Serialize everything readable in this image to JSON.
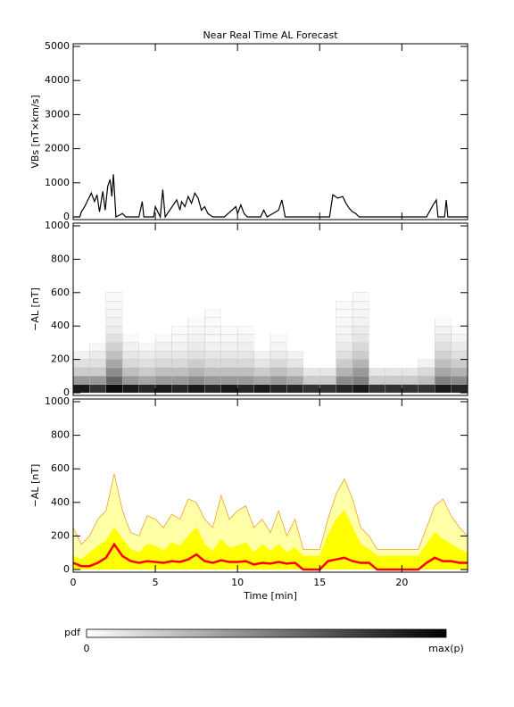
{
  "chart_data": [
    {
      "type": "line",
      "title": "Near Real Time AL Forecast",
      "ylabel": "VBs [nT×km/s]",
      "xlim": [
        0,
        24
      ],
      "ylim": [
        0,
        5000
      ],
      "yticks": [
        0,
        1000,
        2000,
        3000,
        4000,
        5000
      ],
      "x": [
        0,
        0.4,
        0.5,
        0.7,
        0.9,
        1.1,
        1.3,
        1.45,
        1.6,
        1.8,
        1.95,
        2.1,
        2.25,
        2.35,
        2.45,
        2.6,
        3.0,
        3.2,
        4.0,
        4.2,
        4.3,
        4.9,
        5.0,
        5.3,
        5.45,
        5.6,
        6.3,
        6.5,
        6.6,
        6.8,
        7.0,
        7.2,
        7.4,
        7.6,
        7.8,
        8.0,
        8.2,
        8.5,
        9.2,
        9.9,
        10.0,
        10.2,
        10.4,
        10.6,
        11.4,
        11.6,
        11.8,
        12.5,
        12.7,
        12.9,
        15.6,
        15.8,
        16.1,
        16.4,
        16.6,
        16.8,
        17.0,
        17.2,
        17.4,
        21.5,
        21.9,
        22.1,
        22.2,
        22.6,
        22.7,
        22.8,
        24
      ],
      "values": [
        0,
        0,
        150,
        300,
        500,
        700,
        450,
        650,
        150,
        750,
        200,
        900,
        1100,
        600,
        1250,
        0,
        100,
        0,
        0,
        450,
        0,
        0,
        300,
        0,
        800,
        0,
        500,
        200,
        450,
        300,
        600,
        400,
        700,
        550,
        200,
        300,
        100,
        0,
        0,
        300,
        100,
        350,
        100,
        0,
        0,
        200,
        0,
        200,
        500,
        0,
        0,
        650,
        550,
        600,
        400,
        250,
        150,
        100,
        0,
        0,
        350,
        500,
        0,
        0,
        500,
        0,
        0
      ],
      "color": "#000000"
    },
    {
      "type": "heatmap",
      "ylabel": "−AL [nT]",
      "xlim": [
        0,
        24
      ],
      "ylim": [
        0,
        1000
      ],
      "yticks": [
        0,
        200,
        400,
        600,
        800,
        1000
      ],
      "x_bins": [
        0,
        1,
        2,
        3,
        4,
        5,
        6,
        7,
        8,
        9,
        10,
        11,
        12,
        13,
        14,
        15,
        16,
        17,
        18,
        19,
        20,
        21,
        22,
        23,
        24
      ],
      "y_bins": [
        0,
        50,
        100,
        150,
        200,
        250,
        300,
        350,
        400,
        450,
        500,
        550,
        600
      ],
      "z": [
        [
          0.9,
          0.8,
          0.95,
          0.9,
          0.85,
          0.9,
          0.85,
          0.9,
          0.85,
          0.9,
          0.85,
          0.9,
          0.85,
          0.85,
          0.8,
          0.8,
          0.85,
          0.9,
          0.8,
          0.8,
          0.8,
          0.8,
          0.9,
          0.85
        ],
        [
          0.4,
          0.4,
          0.6,
          0.4,
          0.35,
          0.4,
          0.4,
          0.45,
          0.4,
          0.4,
          0.4,
          0.35,
          0.4,
          0.35,
          0.2,
          0.2,
          0.45,
          0.5,
          0.2,
          0.2,
          0.2,
          0.25,
          0.5,
          0.45
        ],
        [
          0.2,
          0.2,
          0.45,
          0.25,
          0.2,
          0.25,
          0.25,
          0.3,
          0.25,
          0.25,
          0.25,
          0.2,
          0.25,
          0.2,
          0.1,
          0.1,
          0.3,
          0.4,
          0.1,
          0.1,
          0.1,
          0.15,
          0.35,
          0.3
        ],
        [
          0.12,
          0.12,
          0.35,
          0.15,
          0.12,
          0.15,
          0.15,
          0.2,
          0.15,
          0.15,
          0.15,
          0.1,
          0.15,
          0.1,
          0,
          0,
          0.2,
          0.3,
          0,
          0,
          0,
          0.05,
          0.25,
          0.2
        ],
        [
          0.05,
          0.08,
          0.25,
          0.1,
          0.08,
          0.1,
          0.1,
          0.12,
          0.1,
          0.1,
          0.1,
          0.05,
          0.08,
          0.05,
          0,
          0,
          0.12,
          0.2,
          0,
          0,
          0,
          0,
          0.18,
          0.12
        ],
        [
          0,
          0.03,
          0.18,
          0.05,
          0.03,
          0.05,
          0.05,
          0.08,
          0.05,
          0.05,
          0.06,
          0,
          0.04,
          0,
          0,
          0,
          0.08,
          0.15,
          0,
          0,
          0,
          0,
          0.12,
          0.08
        ],
        [
          0,
          0,
          0.12,
          0.02,
          0,
          0.02,
          0.03,
          0.05,
          0.03,
          0.03,
          0.04,
          0,
          0.02,
          0,
          0,
          0,
          0.05,
          0.1,
          0,
          0,
          0,
          0,
          0.08,
          0.04
        ],
        [
          0,
          0,
          0.08,
          0,
          0,
          0,
          0.02,
          0.03,
          0.03,
          0.02,
          0.02,
          0,
          0,
          0,
          0,
          0,
          0.04,
          0.08,
          0,
          0,
          0,
          0,
          0.05,
          0.02
        ],
        [
          0,
          0,
          0.06,
          0,
          0,
          0,
          0,
          0.02,
          0.02,
          0,
          0,
          0,
          0,
          0,
          0,
          0,
          0.03,
          0.05,
          0,
          0,
          0,
          0,
          0.02,
          0
        ],
        [
          0,
          0,
          0.04,
          0,
          0,
          0,
          0,
          0,
          0.02,
          0,
          0,
          0,
          0,
          0,
          0,
          0,
          0.02,
          0.04,
          0,
          0,
          0,
          0,
          0,
          0
        ],
        [
          0,
          0,
          0.03,
          0,
          0,
          0,
          0,
          0,
          0,
          0,
          0,
          0,
          0,
          0,
          0,
          0,
          0.02,
          0.03,
          0,
          0,
          0,
          0,
          0,
          0
        ],
        [
          0,
          0,
          0.02,
          0,
          0,
          0,
          0,
          0,
          0,
          0,
          0,
          0,
          0,
          0,
          0,
          0,
          0,
          0.02,
          0,
          0,
          0,
          0,
          0,
          0
        ]
      ],
      "colorbar": {
        "label": "pdf",
        "min_label": "0",
        "max_label": "max(p)"
      }
    },
    {
      "type": "band",
      "ylabel": "−AL [nT]",
      "xlabel": "Time [min]",
      "xlim": [
        0,
        24
      ],
      "ylim": [
        0,
        1000
      ],
      "xticks": [
        0,
        5,
        10,
        15,
        20
      ],
      "yticks": [
        0,
        200,
        400,
        600,
        800,
        1000
      ],
      "x": [
        0,
        0.5,
        1,
        1.5,
        2,
        2.5,
        3,
        3.5,
        4,
        4.5,
        5,
        5.5,
        6,
        6.5,
        7,
        7.5,
        8,
        8.5,
        9,
        9.5,
        10,
        10.5,
        11,
        11.5,
        12,
        12.5,
        13,
        13.5,
        14,
        14.5,
        15,
        15.5,
        16,
        16.5,
        17,
        17.5,
        18,
        18.5,
        19,
        19.5,
        20,
        20.5,
        21,
        21.5,
        22,
        22.5,
        23,
        23.5,
        24
      ],
      "series": [
        {
          "color": "#f0a030",
          "fill": "#ffffa8",
          "values": [
            250,
            150,
            200,
            300,
            350,
            570,
            350,
            220,
            200,
            320,
            300,
            250,
            330,
            300,
            420,
            400,
            300,
            250,
            440,
            300,
            350,
            380,
            250,
            300,
            220,
            350,
            200,
            300,
            120,
            120,
            120,
            300,
            450,
            540,
            420,
            250,
            200,
            120,
            120,
            120,
            120,
            120,
            120,
            250,
            380,
            420,
            320,
            250,
            200
          ]
        },
        {
          "color": "#ffff00",
          "fill": "#ffff00",
          "values": [
            80,
            60,
            100,
            140,
            170,
            250,
            180,
            120,
            100,
            150,
            140,
            110,
            160,
            140,
            200,
            250,
            150,
            110,
            180,
            130,
            140,
            160,
            100,
            150,
            110,
            150,
            100,
            130,
            80,
            80,
            80,
            200,
            300,
            350,
            250,
            150,
            120,
            80,
            80,
            80,
            80,
            80,
            80,
            150,
            220,
            180,
            150,
            120,
            100
          ]
        },
        {
          "color": "#ff0000",
          "values": [
            40,
            20,
            20,
            40,
            70,
            150,
            80,
            50,
            40,
            50,
            45,
            40,
            50,
            45,
            60,
            90,
            50,
            40,
            55,
            45,
            45,
            50,
            30,
            40,
            35,
            45,
            35,
            40,
            0,
            0,
            0,
            50,
            60,
            70,
            50,
            40,
            40,
            0,
            0,
            0,
            0,
            0,
            0,
            40,
            70,
            50,
            50,
            40,
            40
          ]
        }
      ]
    }
  ]
}
